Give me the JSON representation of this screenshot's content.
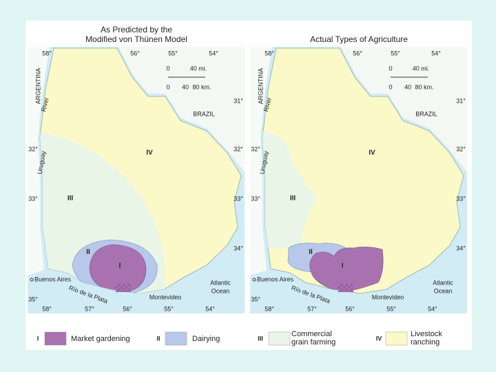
{
  "maps": [
    {
      "title": [
        "As Predicted by the",
        "Modified von Thünen Model"
      ],
      "labels": [
        "58°",
        "56°",
        "55°",
        "54°",
        "58°",
        "57°",
        "56°",
        "55°",
        "54°",
        "32°",
        "33°",
        "35°",
        "31°",
        "32°",
        "33°",
        "34°",
        "0",
        "40 mi.",
        "0",
        "40",
        "80 km.",
        "ARGENTINA",
        "River",
        "Uruguay",
        "BRAZIL",
        "IV",
        "III",
        "II",
        "I",
        "Buenos Aires",
        "Río de la Plata",
        "Montevideo",
        "Atlantic",
        "Ocean"
      ]
    },
    {
      "title": [
        "Actual Types of Agriculture"
      ],
      "labels": [
        "58°",
        "56°",
        "55°",
        "54°",
        "58°",
        "57°",
        "56°",
        "55°",
        "54°",
        "32°",
        "33°",
        "35°",
        "31°",
        "32°",
        "33°",
        "34°",
        "0",
        "40 mi.",
        "0",
        "40",
        "80 km.",
        "ARGENTINA",
        "River",
        "Uruguay",
        "BRAZIL",
        "IV",
        "III",
        "II",
        "I",
        "Buenos Aires",
        "Río de la Plata",
        "Montevideo",
        "Atlantic",
        "Ocean"
      ]
    }
  ],
  "legend": [
    {
      "numeral": "I",
      "label": [
        "Market gardening"
      ]
    },
    {
      "numeral": "II",
      "label": [
        "Dairying"
      ]
    },
    {
      "numeral": "III",
      "label": [
        "Commercial",
        "grain farming"
      ]
    },
    {
      "numeral": "IV",
      "label": [
        "Livestock",
        "ranching"
      ]
    }
  ]
}
